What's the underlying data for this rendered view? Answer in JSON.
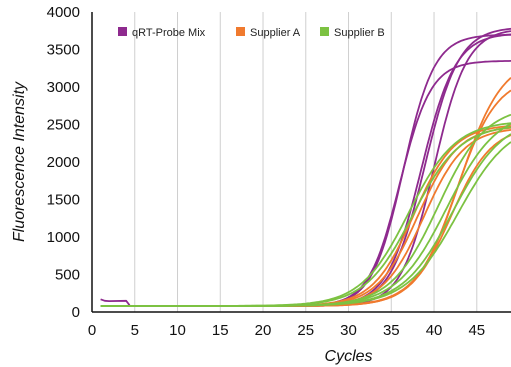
{
  "chart_data": {
    "type": "line",
    "title": "",
    "xlabel": "Cycles",
    "ylabel": "Fluorescence Intensity",
    "xlim": [
      0,
      49
    ],
    "ylim": [
      0,
      4000
    ],
    "x_ticks": [
      0,
      5,
      10,
      15,
      20,
      25,
      30,
      35,
      40,
      45
    ],
    "y_ticks": [
      0,
      500,
      1000,
      1500,
      2000,
      2500,
      3000,
      3500,
      4000
    ],
    "grid": "vertical",
    "legend_position": "top-left",
    "legend": [
      {
        "name": "qRT-Probe Mix",
        "color": "#8E2A8E"
      },
      {
        "name": "Supplier A",
        "color": "#F07A2E"
      },
      {
        "name": "Supplier B",
        "color": "#7CC242"
      }
    ],
    "series": [
      {
        "name": "qRT-Probe Mix",
        "color": "#8E2A8E",
        "baseline": 80,
        "curves": [
          {
            "midpoint": 36.0,
            "plateau": 3350,
            "slope": 0.55
          },
          {
            "midpoint": 36.4,
            "plateau": 3700,
            "slope": 0.55
          },
          {
            "midpoint": 38.5,
            "plateau": 3720,
            "slope": 0.5
          },
          {
            "midpoint": 38.9,
            "plateau": 3800,
            "slope": 0.5
          },
          {
            "midpoint": 40.0,
            "plateau": 3780,
            "slope": 0.52
          }
        ],
        "early_points": [
          [
            1,
            170
          ],
          [
            1.5,
            150
          ],
          [
            2,
            145
          ],
          [
            4,
            150
          ],
          [
            4.4,
            90
          ]
        ]
      },
      {
        "name": "Supplier A",
        "color": "#F07A2E",
        "baseline": 80,
        "curves": [
          {
            "midpoint": 37.6,
            "plateau": 2500,
            "slope": 0.42
          },
          {
            "midpoint": 38.1,
            "plateau": 2480,
            "slope": 0.42
          },
          {
            "midpoint": 38.8,
            "plateau": 2460,
            "slope": 0.42
          },
          {
            "midpoint": 42.0,
            "plateau": 2480,
            "slope": 0.42
          },
          {
            "midpoint": 42.6,
            "plateau": 3150,
            "slope": 0.42
          },
          {
            "midpoint": 43.0,
            "plateau": 3400,
            "slope": 0.4
          }
        ]
      },
      {
        "name": "Supplier B",
        "color": "#7CC242",
        "baseline": 80,
        "curves": [
          {
            "midpoint": 37.0,
            "plateau": 2550,
            "slope": 0.36
          },
          {
            "midpoint": 37.5,
            "plateau": 2500,
            "slope": 0.36
          },
          {
            "midpoint": 40.5,
            "plateau": 2750,
            "slope": 0.36
          },
          {
            "midpoint": 41.5,
            "plateau": 2700,
            "slope": 0.34
          },
          {
            "midpoint": 42.2,
            "plateau": 2600,
            "slope": 0.34
          },
          {
            "midpoint": 42.8,
            "plateau": 2550,
            "slope": 0.33
          }
        ]
      }
    ]
  }
}
